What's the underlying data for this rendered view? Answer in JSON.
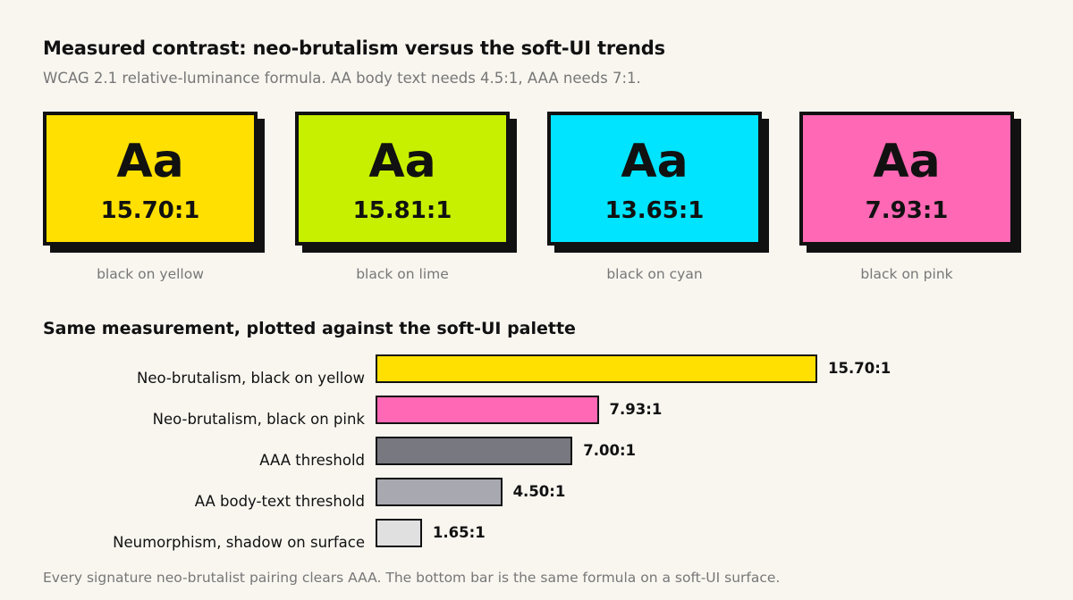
{
  "header": {
    "title": "Measured contrast: neo-brutalism versus the soft-UI trends",
    "subtitle": "WCAG 2.1 relative-luminance formula. AA body text needs 4.5:1, AAA needs 7:1."
  },
  "swatches": [
    {
      "sample": "Aa",
      "ratio": "15.70:1",
      "caption": "black on yellow",
      "color": "#ffe000"
    },
    {
      "sample": "Aa",
      "ratio": "15.81:1",
      "caption": "black on lime",
      "color": "#c6f000"
    },
    {
      "sample": "Aa",
      "ratio": "13.65:1",
      "caption": "black on cyan",
      "color": "#00e4ff"
    },
    {
      "sample": "Aa",
      "ratio": "7.93:1",
      "caption": "black on pink",
      "color": "#ff68b4"
    }
  ],
  "section_title": "Same measurement, plotted against the soft-UI palette",
  "chart_data": {
    "type": "bar",
    "orientation": "horizontal",
    "categories": [
      "Neo-brutalism, black on yellow",
      "Neo-brutalism, black on pink",
      "AAA threshold",
      "AA body-text threshold",
      "Neumorphism, shadow on surface"
    ],
    "values": [
      15.7,
      7.93,
      7.0,
      4.5,
      1.65
    ],
    "value_labels": [
      "15.70:1",
      "7.93:1",
      "7.00:1",
      "4.50:1",
      "1.65:1"
    ],
    "colors": [
      "#ffe000",
      "#ff68b4",
      "#787880",
      "#a8a8b0",
      "#e0e0e0"
    ],
    "xlim": [
      0,
      15.7
    ],
    "grid": false
  },
  "footnote": "Every signature neo-brutalist pairing clears AAA. The bottom bar is the same formula on a soft-UI surface."
}
